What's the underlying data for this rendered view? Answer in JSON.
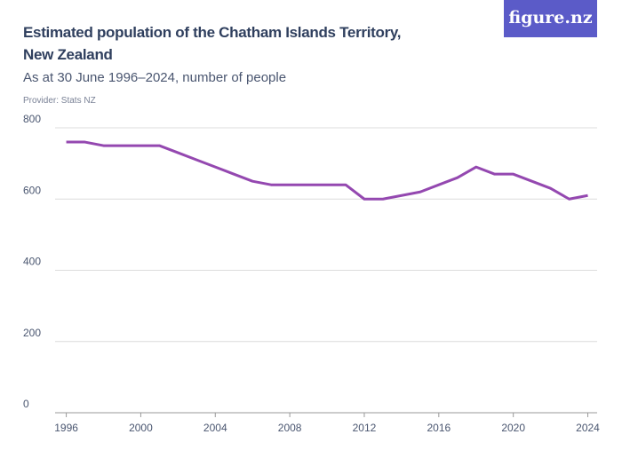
{
  "chart_data": {
    "type": "line",
    "title": "Estimated population of the Chatham Islands Territory,\nNew Zealand",
    "subtitle": "As at 30 June 1996–2024, number of people",
    "source": "Provider: Stats NZ",
    "logo": "figure.nz",
    "x": [
      1996,
      1997,
      1998,
      1999,
      2000,
      2001,
      2002,
      2003,
      2004,
      2005,
      2006,
      2007,
      2008,
      2009,
      2010,
      2011,
      2012,
      2013,
      2014,
      2015,
      2016,
      2017,
      2018,
      2019,
      2020,
      2021,
      2022,
      2023,
      2024
    ],
    "values": [
      760,
      760,
      750,
      750,
      750,
      750,
      730,
      710,
      690,
      670,
      650,
      640,
      640,
      640,
      640,
      640,
      600,
      600,
      610,
      620,
      640,
      660,
      690,
      670,
      670,
      650,
      630,
      600,
      610
    ],
    "color": "#9448b0",
    "xlim": [
      1995.4,
      2024.5
    ],
    "xticks": [
      1996,
      2000,
      2004,
      2008,
      2012,
      2016,
      2020,
      2024
    ],
    "ylim": [
      0,
      800
    ],
    "yticks": [
      0,
      200,
      400,
      600,
      800
    ],
    "grid": true
  }
}
